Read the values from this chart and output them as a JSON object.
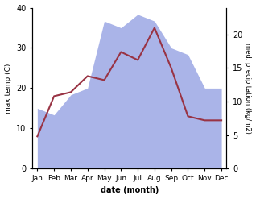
{
  "months": [
    "Jan",
    "Feb",
    "Mar",
    "Apr",
    "May",
    "Jun",
    "Jul",
    "Aug",
    "Sep",
    "Oct",
    "Nov",
    "Dec"
  ],
  "temp_max": [
    8,
    18,
    19,
    23,
    22,
    29,
    27,
    35,
    25,
    13,
    12,
    12
  ],
  "precipitation": [
    9,
    8,
    11,
    12,
    22,
    21,
    23,
    22,
    18,
    17,
    12,
    12
  ],
  "temp_ylim": [
    0,
    40
  ],
  "precip_ylim": [
    0,
    24
  ],
  "temp_color": "#993344",
  "precip_color": "#aab4e8",
  "xlabel": "date (month)",
  "ylabel_left": "max temp (C)",
  "ylabel_right": "med. precipitation (kg/m2)",
  "bg_color": "#ffffff",
  "temp_linewidth": 1.5,
  "right_yticks": [
    0,
    5,
    10,
    15,
    20
  ],
  "left_yticks": [
    0,
    10,
    20,
    30,
    40
  ]
}
